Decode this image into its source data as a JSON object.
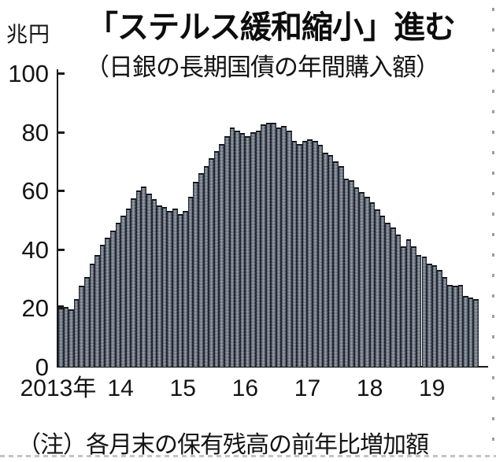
{
  "chart_data": {
    "type": "bar",
    "title": "「ステルス緩和縮小」進む",
    "subtitle": "（日銀の長期国債の年間購入額）",
    "unit_label": "兆円",
    "note": "（注）各月末の保有残高の前年比増加額",
    "ylim": [
      0,
      100
    ],
    "y_ticks": [
      0,
      20,
      40,
      60,
      80,
      100
    ],
    "x_tick_labels": [
      "2013年",
      "14",
      "15",
      "16",
      "17",
      "18",
      "19"
    ],
    "months_per_tick": 12,
    "grid": false,
    "legend": "none",
    "series_name": "日銀の長期国債の年間購入額（月次、兆円）",
    "x_start_label": "2013年",
    "values": [
      21,
      20.5,
      19.5,
      23,
      27.5,
      30.5,
      35,
      38,
      41.5,
      44,
      46.5,
      49,
      51.5,
      54,
      57.5,
      60,
      61.5,
      59,
      57,
      55,
      54.5,
      53,
      54,
      52,
      53,
      58,
      63,
      66,
      68.5,
      71,
      73.5,
      76,
      78.5,
      81.5,
      80.5,
      79.5,
      78.5,
      80,
      80.5,
      82.5,
      83,
      83,
      81.5,
      82,
      80.5,
      77,
      76,
      77,
      77.5,
      77,
      75.5,
      73,
      72,
      70,
      68.5,
      64,
      63.5,
      61,
      59.5,
      58,
      56,
      53.5,
      51.5,
      49,
      47.5,
      45,
      41,
      43.5,
      41,
      38,
      37.5,
      35,
      34.5,
      33,
      30.5,
      28,
      27.5,
      28,
      24,
      23.5,
      23
    ],
    "colors": {
      "bar_fill": "#6e7886",
      "bar_highlight": "#9aa2ad",
      "bar_edge": "#20252c",
      "axis": "#1a1a1a",
      "text": "#141414",
      "clip_dots": "#c3c3c3"
    }
  }
}
